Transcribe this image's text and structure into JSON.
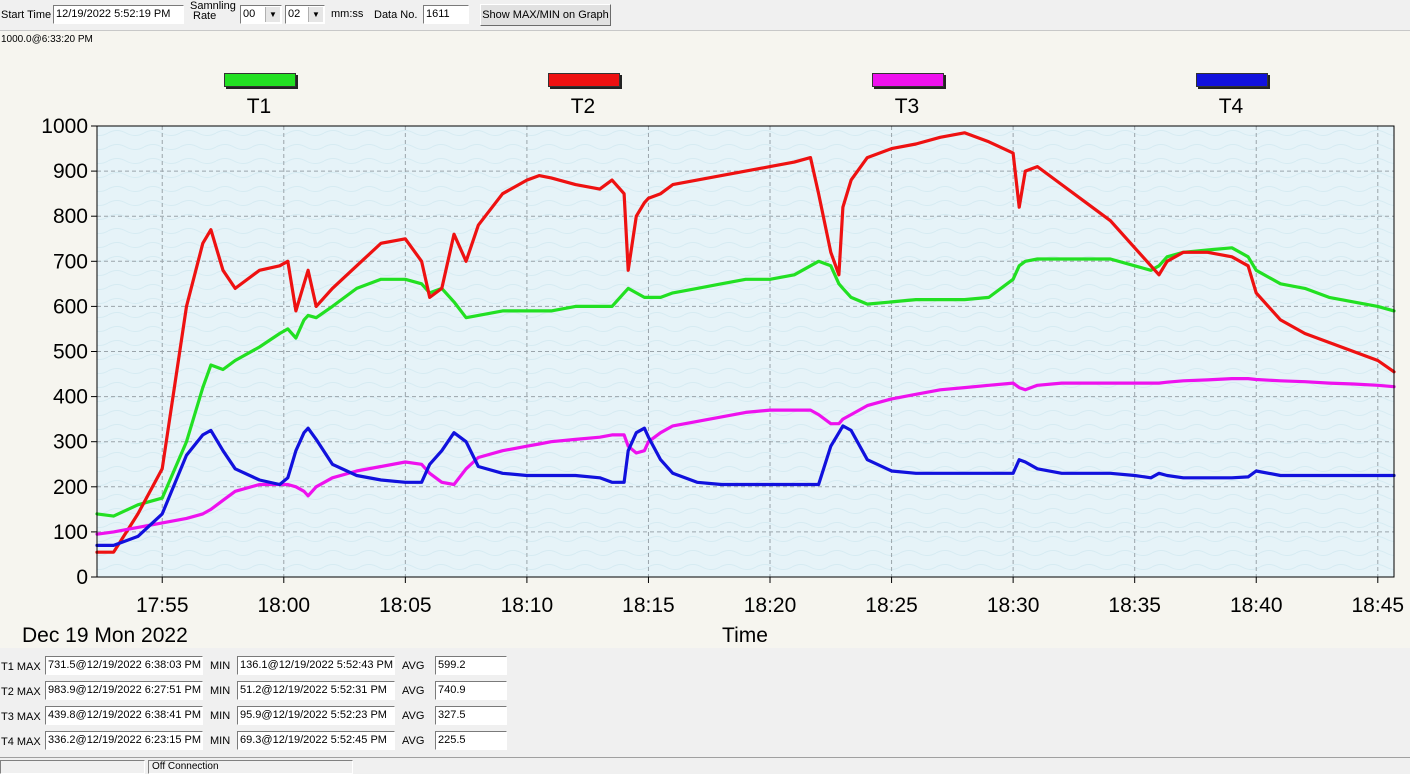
{
  "toolbar": {
    "start_time_label": "Start Time",
    "start_time_value": "12/19/2022 5:52:19 PM",
    "sampling_label_1": "Samnling",
    "sampling_label_2": "Rate",
    "rate_minutes": "00",
    "rate_seconds": "02",
    "rate_unit": "mm:ss",
    "data_no_label": "Data No.",
    "data_no_value": "1611",
    "show_button": "Show MAX/MIN on Graph"
  },
  "cursor_readout": "1000.0@6:33:20 PM",
  "legend": [
    {
      "name": "T1",
      "color": "#22e022"
    },
    {
      "name": "T2",
      "color": "#ee1111"
    },
    {
      "name": "T3",
      "color": "#ee11ee"
    },
    {
      "name": "T4",
      "color": "#1111dd"
    }
  ],
  "date_label": "Dec 19 Mon 2022",
  "chart_data": {
    "type": "line",
    "xlabel": "Time",
    "ylabel": "",
    "xlim": [
      "17:52:19",
      "18:45:40"
    ],
    "ylim": [
      0,
      1000
    ],
    "y_ticks": [
      0,
      100,
      200,
      300,
      400,
      500,
      600,
      700,
      800,
      900,
      1000
    ],
    "x_ticks": [
      "17:55",
      "18:00",
      "18:05",
      "18:10",
      "18:15",
      "18:20",
      "18:25",
      "18:30",
      "18:35",
      "18:40",
      "18:45"
    ],
    "grid": true,
    "legend_position": "top",
    "x": [
      "17:52:19",
      "17:53:00",
      "17:54:00",
      "17:55:00",
      "17:56:00",
      "17:56:40",
      "17:57:00",
      "17:57:30",
      "17:58:00",
      "17:59:00",
      "17:59:50",
      "18:00:10",
      "18:00:30",
      "18:00:50",
      "18:01:00",
      "18:01:20",
      "18:02:00",
      "18:03:00",
      "18:04:00",
      "18:05:00",
      "18:05:40",
      "18:06:00",
      "18:06:30",
      "18:07:00",
      "18:07:30",
      "18:08:00",
      "18:09:00",
      "18:10:00",
      "18:10:30",
      "18:11:00",
      "18:12:00",
      "18:13:00",
      "18:13:30",
      "18:14:00",
      "18:14:10",
      "18:14:30",
      "18:14:50",
      "18:15:00",
      "18:15:30",
      "18:16:00",
      "18:17:00",
      "18:18:00",
      "18:19:00",
      "18:20:00",
      "18:21:00",
      "18:21:40",
      "18:22:00",
      "18:22:30",
      "18:22:50",
      "18:23:00",
      "18:23:20",
      "18:24:00",
      "18:25:00",
      "18:26:00",
      "18:27:00",
      "18:28:00",
      "18:29:00",
      "18:30:00",
      "18:30:15",
      "18:30:30",
      "18:31:00",
      "18:32:00",
      "18:33:00",
      "18:34:00",
      "18:35:00",
      "18:35:40",
      "18:36:00",
      "18:36:20",
      "18:37:00",
      "18:38:00",
      "18:39:00",
      "18:39:40",
      "18:40:00",
      "18:41:00",
      "18:42:00",
      "18:43:00",
      "18:44:00",
      "18:45:00",
      "18:45:40"
    ],
    "series": [
      {
        "name": "T1",
        "color": "#22e022",
        "values": [
          140,
          135,
          160,
          175,
          300,
          420,
          470,
          460,
          480,
          510,
          540,
          550,
          530,
          570,
          580,
          575,
          600,
          640,
          660,
          660,
          650,
          630,
          640,
          610,
          575,
          580,
          590,
          590,
          590,
          590,
          600,
          600,
          600,
          630,
          640,
          630,
          620,
          620,
          620,
          630,
          640,
          650,
          660,
          660,
          670,
          690,
          700,
          690,
          650,
          640,
          620,
          605,
          610,
          615,
          615,
          615,
          620,
          660,
          690,
          700,
          705,
          705,
          705,
          705,
          690,
          680,
          690,
          710,
          720,
          725,
          730,
          710,
          680,
          650,
          640,
          620,
          610,
          600,
          590
        ]
      },
      {
        "name": "T2",
        "color": "#ee1111",
        "values": [
          55,
          55,
          140,
          240,
          600,
          740,
          770,
          680,
          640,
          680,
          690,
          700,
          590,
          650,
          680,
          600,
          640,
          690,
          740,
          750,
          700,
          620,
          640,
          760,
          700,
          780,
          850,
          880,
          890,
          885,
          870,
          860,
          880,
          850,
          680,
          800,
          830,
          840,
          850,
          870,
          880,
          890,
          900,
          910,
          920,
          930,
          850,
          720,
          670,
          820,
          880,
          930,
          950,
          960,
          975,
          985,
          965,
          940,
          820,
          900,
          910,
          870,
          830,
          790,
          730,
          690,
          670,
          700,
          720,
          720,
          710,
          690,
          630,
          570,
          540,
          520,
          500,
          480,
          455
        ]
      },
      {
        "name": "T3",
        "color": "#ee11ee",
        "values": [
          95,
          100,
          110,
          120,
          130,
          140,
          150,
          170,
          190,
          205,
          205,
          205,
          200,
          190,
          180,
          200,
          220,
          235,
          245,
          255,
          250,
          230,
          210,
          205,
          240,
          265,
          280,
          290,
          295,
          300,
          305,
          310,
          315,
          315,
          290,
          275,
          280,
          300,
          320,
          335,
          345,
          355,
          365,
          370,
          370,
          370,
          360,
          340,
          340,
          350,
          360,
          380,
          395,
          405,
          415,
          420,
          425,
          430,
          420,
          415,
          425,
          430,
          430,
          430,
          430,
          430,
          430,
          432,
          435,
          437,
          440,
          440,
          438,
          435,
          433,
          430,
          428,
          425,
          422
        ]
      },
      {
        "name": "T4",
        "color": "#1111dd",
        "values": [
          70,
          70,
          90,
          140,
          270,
          315,
          325,
          280,
          240,
          215,
          205,
          220,
          280,
          320,
          330,
          305,
          250,
          225,
          215,
          210,
          210,
          250,
          280,
          320,
          300,
          245,
          230,
          225,
          225,
          225,
          225,
          220,
          210,
          210,
          280,
          320,
          330,
          310,
          260,
          230,
          210,
          205,
          205,
          205,
          205,
          205,
          205,
          290,
          320,
          335,
          325,
          260,
          235,
          230,
          230,
          230,
          230,
          230,
          260,
          255,
          240,
          230,
          230,
          230,
          225,
          220,
          230,
          225,
          220,
          220,
          220,
          222,
          235,
          225,
          225,
          225,
          225,
          225,
          225
        ]
      }
    ]
  },
  "stats": [
    {
      "label": "T1 MAX",
      "max": "731.5@12/19/2022 6:38:03 PM",
      "min_label": "MIN",
      "min": "136.1@12/19/2022 5:52:43 PM",
      "avg_label": "AVG",
      "avg": "599.2"
    },
    {
      "label": "T2 MAX",
      "max": "983.9@12/19/2022 6:27:51 PM",
      "min_label": "MIN",
      "min": "51.2@12/19/2022 5:52:31 PM",
      "avg_label": "AVG",
      "avg": "740.9"
    },
    {
      "label": "T3 MAX",
      "max": "439.8@12/19/2022 6:38:41 PM",
      "min_label": "MIN",
      "min": "95.9@12/19/2022 5:52:23 PM",
      "avg_label": "AVG",
      "avg": "327.5"
    },
    {
      "label": "T4 MAX",
      "max": "336.2@12/19/2022 6:23:15 PM",
      "min_label": "MIN",
      "min": "69.3@12/19/2022 5:52:45 PM",
      "avg_label": "AVG",
      "avg": "225.5"
    }
  ],
  "status_text": "Off Connection"
}
